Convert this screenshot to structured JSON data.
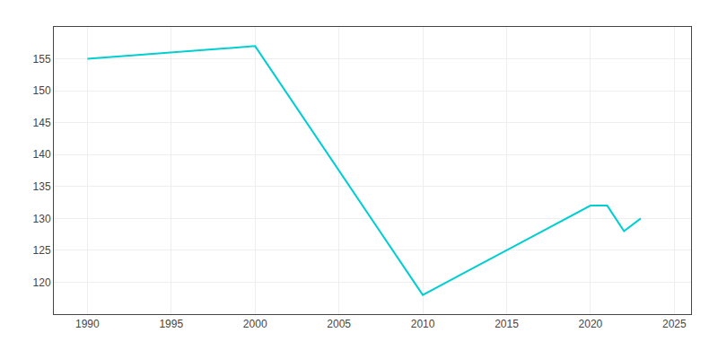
{
  "chart_data": {
    "type": "line",
    "x": [
      1990,
      2000,
      2010,
      2020,
      2021,
      2022,
      2023
    ],
    "values": [
      155,
      157,
      118,
      132,
      132,
      128,
      130
    ],
    "color": "#00CED1",
    "xlim": [
      1988,
      2026
    ],
    "ylim": [
      115,
      160
    ],
    "xticks": [
      1990,
      1995,
      2000,
      2005,
      2010,
      2015,
      2020,
      2025
    ],
    "yticks": [
      120,
      125,
      130,
      135,
      140,
      145,
      150,
      155
    ],
    "grid": true
  }
}
